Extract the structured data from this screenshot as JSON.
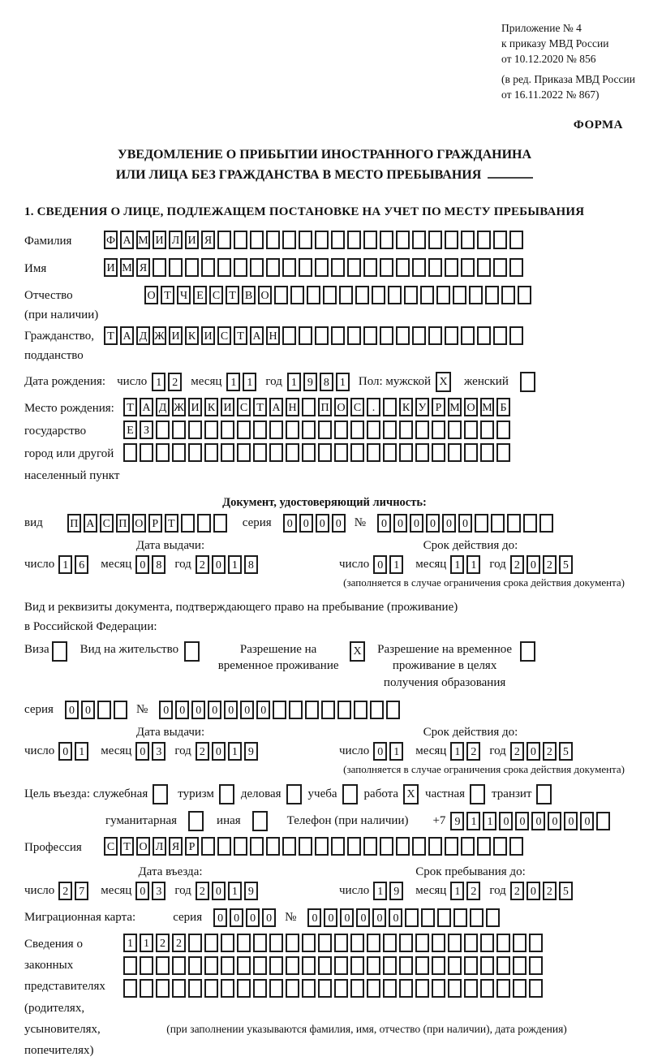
{
  "header": {
    "appendix_lines": [
      "Приложение № 4",
      "к приказу МВД России",
      "от 10.12.2020 № 856"
    ],
    "appendix_note_lines": [
      "(в ред. Приказа МВД России",
      "от 16.11.2022 № 867)"
    ],
    "form_label": "ФОРМА"
  },
  "title": {
    "line1": "УВЕДОМЛЕНИЕ О ПРИБЫТИИ ИНОСТРАННОГО ГРАЖДАНИНА",
    "line2": "ИЛИ ЛИЦА БЕЗ ГРАЖДАНСТВА В МЕСТО ПРЕБЫВАНИЯ"
  },
  "section1_heading": "1. СВЕДЕНИЯ О ЛИЦЕ, ПОДЛЕЖАЩЕМ ПОСТАНОВКЕ НА УЧЕТ ПО МЕСТУ ПРЕБЫВАНИЯ",
  "labels": {
    "day": "число",
    "month": "месяц",
    "year": "год",
    "seria": "серия",
    "number": "№"
  },
  "fields": {
    "surname": {
      "label": "Фамилия",
      "cells": {
        "text": "ФАМИЛИЯ",
        "total": 26
      }
    },
    "name": {
      "label": "Имя",
      "cells": {
        "text": "ИМЯ",
        "total": 26
      }
    },
    "patronymic": {
      "label": [
        "Отчество",
        "(при наличии)"
      ],
      "cells": {
        "text": "ОТЧЕСТВО",
        "total": 24
      }
    },
    "citizenship": {
      "label": [
        "Гражданство,",
        "подданство"
      ],
      "cells": {
        "text": "ТАДЖИКИСТАН",
        "total": 26
      }
    },
    "birth": {
      "label": "Дата рождения:",
      "day": {
        "text": "12"
      },
      "month": {
        "text": "11"
      },
      "year": {
        "text": "1981"
      },
      "gender_label": "Пол: мужской",
      "male_checked": "X",
      "female_label": "женский",
      "female_checked": ""
    },
    "birthplace": {
      "label": [
        "Место рождения:",
        "государство",
        "город или другой",
        "населенный пункт"
      ],
      "row1": {
        "text": "ТАДЖИКИСТАН ПОС. КУРМОМБ",
        "total": 24
      },
      "row2": {
        "text": "ЕЗ",
        "total": 24
      },
      "row3": {
        "text": "",
        "total": 24
      }
    },
    "identity_doc": {
      "heading": "Документ, удостоверяющий личность:",
      "type_label": "вид",
      "type": {
        "text": "ПАСПОРТ",
        "total": 10
      },
      "seria": {
        "text": "0000"
      },
      "number": {
        "text": "000000",
        "total": 11
      },
      "issue_heading": "Дата выдачи:",
      "issue_day": {
        "text": "16"
      },
      "issue_month": {
        "text": "08"
      },
      "issue_year": {
        "text": "2018"
      },
      "valid_heading": "Срок действия до:",
      "valid_day": {
        "text": "01"
      },
      "valid_month": {
        "text": "11"
      },
      "valid_year": {
        "text": "2025"
      },
      "note": "(заполняется в случае ограничения срока действия документа)"
    },
    "residence_doc": {
      "intro_line1": "Вид и реквизиты документа, подтверждающего право на пребывание (проживание)",
      "intro_line2": "в Российской Федерации:",
      "options": [
        {
          "label": "Виза",
          "checked": ""
        },
        {
          "label": "Вид на жительство",
          "checked": ""
        },
        {
          "label": "Разрешение на временное проживание",
          "checked": "X"
        },
        {
          "label": "Разрешение на временное проживание в целях получения образования",
          "checked": ""
        }
      ],
      "seria": {
        "text": "00",
        "total": 4
      },
      "number": {
        "text": "0000000",
        "total": 15
      },
      "issue_heading": "Дата выдачи:",
      "issue_day": {
        "text": "01"
      },
      "issue_month": {
        "text": "03"
      },
      "issue_year": {
        "text": "2019"
      },
      "valid_heading": "Срок действия до:",
      "valid_day": {
        "text": "01"
      },
      "valid_month": {
        "text": "12"
      },
      "valid_year": {
        "text": "2025"
      },
      "note": "(заполняется в случае ограничения срока действия документа)"
    },
    "purpose": {
      "intro_label": "Цель въезда: служебная",
      "options_row1": [
        {
          "label": "туризм",
          "checked": ""
        },
        {
          "label": "деловая",
          "checked": ""
        },
        {
          "label": "учеба",
          "checked": ""
        },
        {
          "label": "работа",
          "checked": "X"
        },
        {
          "label": "частная",
          "checked": ""
        },
        {
          "label": "транзит",
          "checked": ""
        }
      ],
      "first_checked": "",
      "options_row2": [
        {
          "label": "гуманитарная",
          "checked": ""
        },
        {
          "label": "иная",
          "checked": ""
        }
      ],
      "phone_label": "Телефон (при наличии)",
      "phone_prefix": "+7",
      "phone": {
        "text": "911000000",
        "total": 10
      }
    },
    "profession": {
      "label": "Профессия",
      "cells": {
        "text": "СТОЛЯР",
        "total": 26
      }
    },
    "entry": {
      "entry_heading": "Дата въезда:",
      "entry_day": {
        "text": "27"
      },
      "entry_month": {
        "text": "03"
      },
      "entry_year": {
        "text": "2019"
      },
      "stay_heading": "Срок пребывания до:",
      "stay_day": {
        "text": "19"
      },
      "stay_month": {
        "text": "12"
      },
      "stay_year": {
        "text": "2025"
      }
    },
    "migration_card": {
      "label": "Миграционная карта:",
      "seria": {
        "text": "0000"
      },
      "number": {
        "text": "000000",
        "total": 12
      }
    },
    "legal_reps": {
      "label": [
        "Сведения о",
        "законных",
        "представителях",
        "(родителях,",
        "усыновителях,",
        "попечителях)"
      ],
      "rows": [
        {
          "text": "1122",
          "total": 26
        },
        {
          "text": "",
          "total": 26
        },
        {
          "text": "",
          "total": 26
        }
      ],
      "note": "(при заполнении указываются фамилия, имя, отчество (при наличии), дата рождения)"
    }
  }
}
